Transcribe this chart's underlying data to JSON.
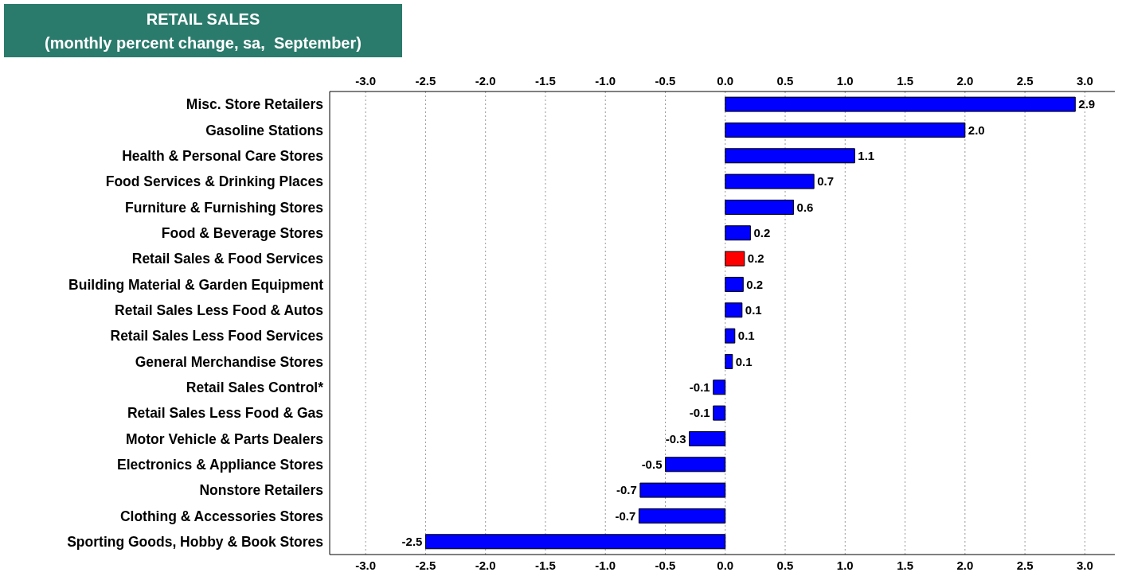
{
  "chart_data": {
    "type": "bar",
    "orientation": "horizontal",
    "title": "RETAIL SALES",
    "subtitle": "(monthly percent change, sa,  September)",
    "categories": [
      "Misc. Store Retailers",
      "Gasoline Stations",
      "Health & Personal Care Stores",
      "Food Services & Drinking Places",
      "Furniture & Furnishing Stores",
      "Food & Beverage Stores",
      "Retail Sales & Food Services",
      "Building Material & Garden Equipment",
      "Retail Sales Less Food & Autos",
      "Retail Sales Less Food Services",
      "General Merchandise Stores",
      "Retail Sales Control*",
      "Retail Sales Less Food & Gas",
      "Motor Vehicle & Parts Dealers",
      "Electronics & Appliance Stores",
      "Nonstore Retailers",
      "Clothing & Accessories Stores",
      "Sporting Goods, Hobby & Book Stores"
    ],
    "values": [
      2.92,
      2.0,
      1.08,
      0.74,
      0.57,
      0.21,
      0.16,
      0.15,
      0.14,
      0.08,
      0.06,
      -0.1,
      -0.1,
      -0.3,
      -0.5,
      -0.71,
      -0.72,
      -2.5
    ],
    "value_labels": [
      "2.9",
      "2.0",
      "1.1",
      "0.7",
      "0.6",
      "0.2",
      "0.2",
      "0.2",
      "0.1",
      "0.1",
      "0.1",
      "-0.1",
      "-0.1",
      "-0.3",
      "-0.5",
      "-0.7",
      "-0.7",
      "-2.5"
    ],
    "colors": [
      "#0000ff",
      "#0000ff",
      "#0000ff",
      "#0000ff",
      "#0000ff",
      "#0000ff",
      "#ff0000",
      "#0000ff",
      "#0000ff",
      "#0000ff",
      "#0000ff",
      "#0000ff",
      "#0000ff",
      "#0000ff",
      "#0000ff",
      "#0000ff",
      "#0000ff",
      "#0000ff"
    ],
    "xlim": [
      -3.3,
      3.25
    ],
    "xticks": [
      {
        "value": -3,
        "label": "-3.0"
      },
      {
        "value": -2.5,
        "label": "-2.5"
      },
      {
        "value": -2,
        "label": "-2.0"
      },
      {
        "value": -1.5,
        "label": "-1.5"
      },
      {
        "value": -1,
        "label": "-1.0"
      },
      {
        "value": -0.5,
        "label": "-0.5"
      },
      {
        "value": 0,
        "label": "0.0"
      },
      {
        "value": 0.5,
        "label": "0.5"
      },
      {
        "value": 1,
        "label": "1.0"
      },
      {
        "value": 1.5,
        "label": "1.5"
      },
      {
        "value": 2,
        "label": "2.0"
      },
      {
        "value": 2.5,
        "label": "2.5"
      },
      {
        "value": 3,
        "label": "3.0"
      }
    ],
    "x2lim": [
      -3.3,
      3.25
    ],
    "x2ticks": [
      {
        "value": -3,
        "label": "-3.0"
      },
      {
        "value": -2.5,
        "label": "-2.5"
      },
      {
        "value": -2,
        "label": "-2.0"
      },
      {
        "value": -1.5,
        "label": "-1.5"
      },
      {
        "value": -1,
        "label": "-1.0"
      },
      {
        "value": -0.5,
        "label": "-0.5"
      },
      {
        "value": 0,
        "label": "0.0"
      },
      {
        "value": 0.5,
        "label": "0.5"
      },
      {
        "value": 1,
        "label": "1.0"
      },
      {
        "value": 1.5,
        "label": "1.5"
      },
      {
        "value": 2,
        "label": "2.0"
      },
      {
        "value": 2.5,
        "label": "2.5"
      },
      {
        "value": 3,
        "label": "3.0"
      }
    ],
    "grid": "x"
  }
}
